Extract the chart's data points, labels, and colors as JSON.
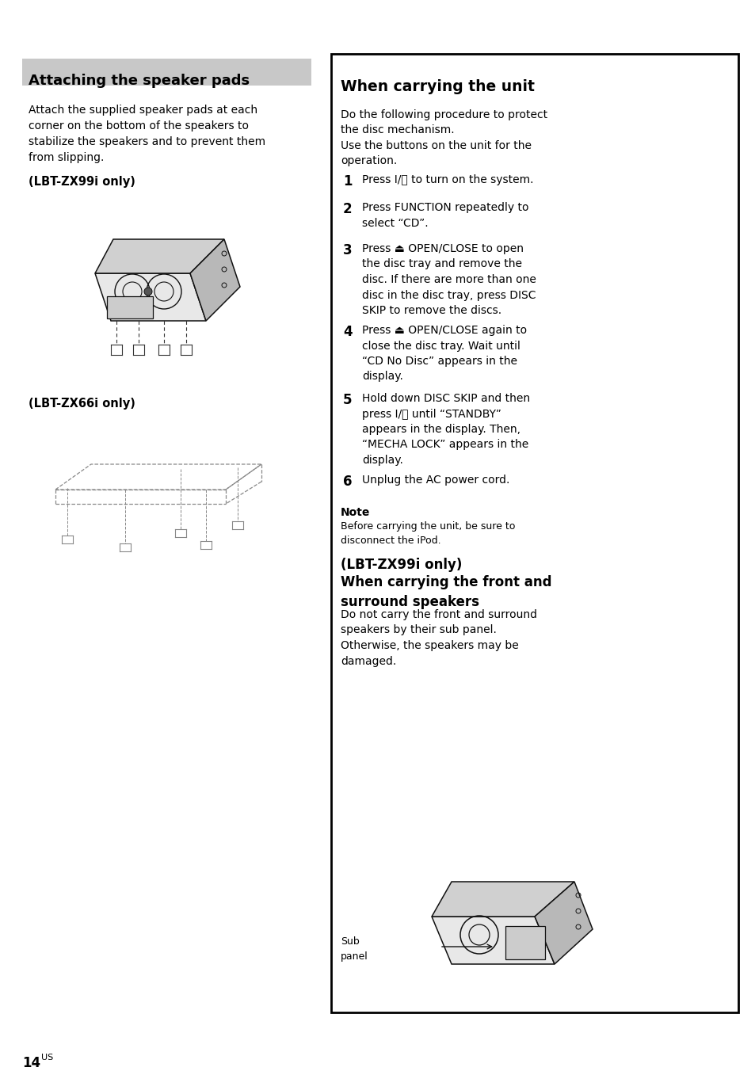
{
  "page_bg": "#ffffff",
  "left_section": {
    "title": "Attaching the speaker pads",
    "title_bg": "#c8c8c8",
    "title_color": "#000000",
    "body_text": "Attach the supplied speaker pads at each\ncorner on the bottom of the speakers to\nstabilize the speakers and to prevent them\nfrom slipping.",
    "label1": "(LBT-ZX99i only)",
    "label2": "(LBT-ZX66i only)"
  },
  "right_section": {
    "title": "When carrying the unit",
    "body_intro": "Do the following procedure to protect\nthe disc mechanism.\nUse the buttons on the unit for the\noperation.",
    "steps": [
      {
        "num": "1",
        "text": "Press I/⏻ to turn on the system."
      },
      {
        "num": "2",
        "text": "Press FUNCTION repeatedly to\nselect “CD”."
      },
      {
        "num": "3",
        "text": "Press ⏏ OPEN/CLOSE to open\nthe disc tray and remove the\ndisc. If there are more than one\ndisc in the disc tray, press DISC\nSKIP to remove the discs."
      },
      {
        "num": "4",
        "text": "Press ⏏ OPEN/CLOSE again to\nclose the disc tray. Wait until\n“CD No Disc” appears in the\ndisplay."
      },
      {
        "num": "5",
        "text": "Hold down DISC SKIP and then\npress I/⏻ until “STANDBY”\nappears in the display. Then,\n“MECHA LOCK” appears in the\ndisplay."
      },
      {
        "num": "6",
        "text": "Unplug the AC power cord."
      }
    ],
    "note_title": "Note",
    "note_text": "Before carrying the unit, be sure to\ndisconnect the iPod.",
    "section2_title1": "(LBT-ZX99i only)",
    "section2_title2": "When carrying the front and\nsurround speakers",
    "section2_body": "Do not carry the front and surround\nspeakers by their sub panel.\nOtherwise, the speakers may be\ndamaged.",
    "sub_label": "Sub\npanel"
  },
  "footer_num": "14",
  "footer_sup": "US"
}
